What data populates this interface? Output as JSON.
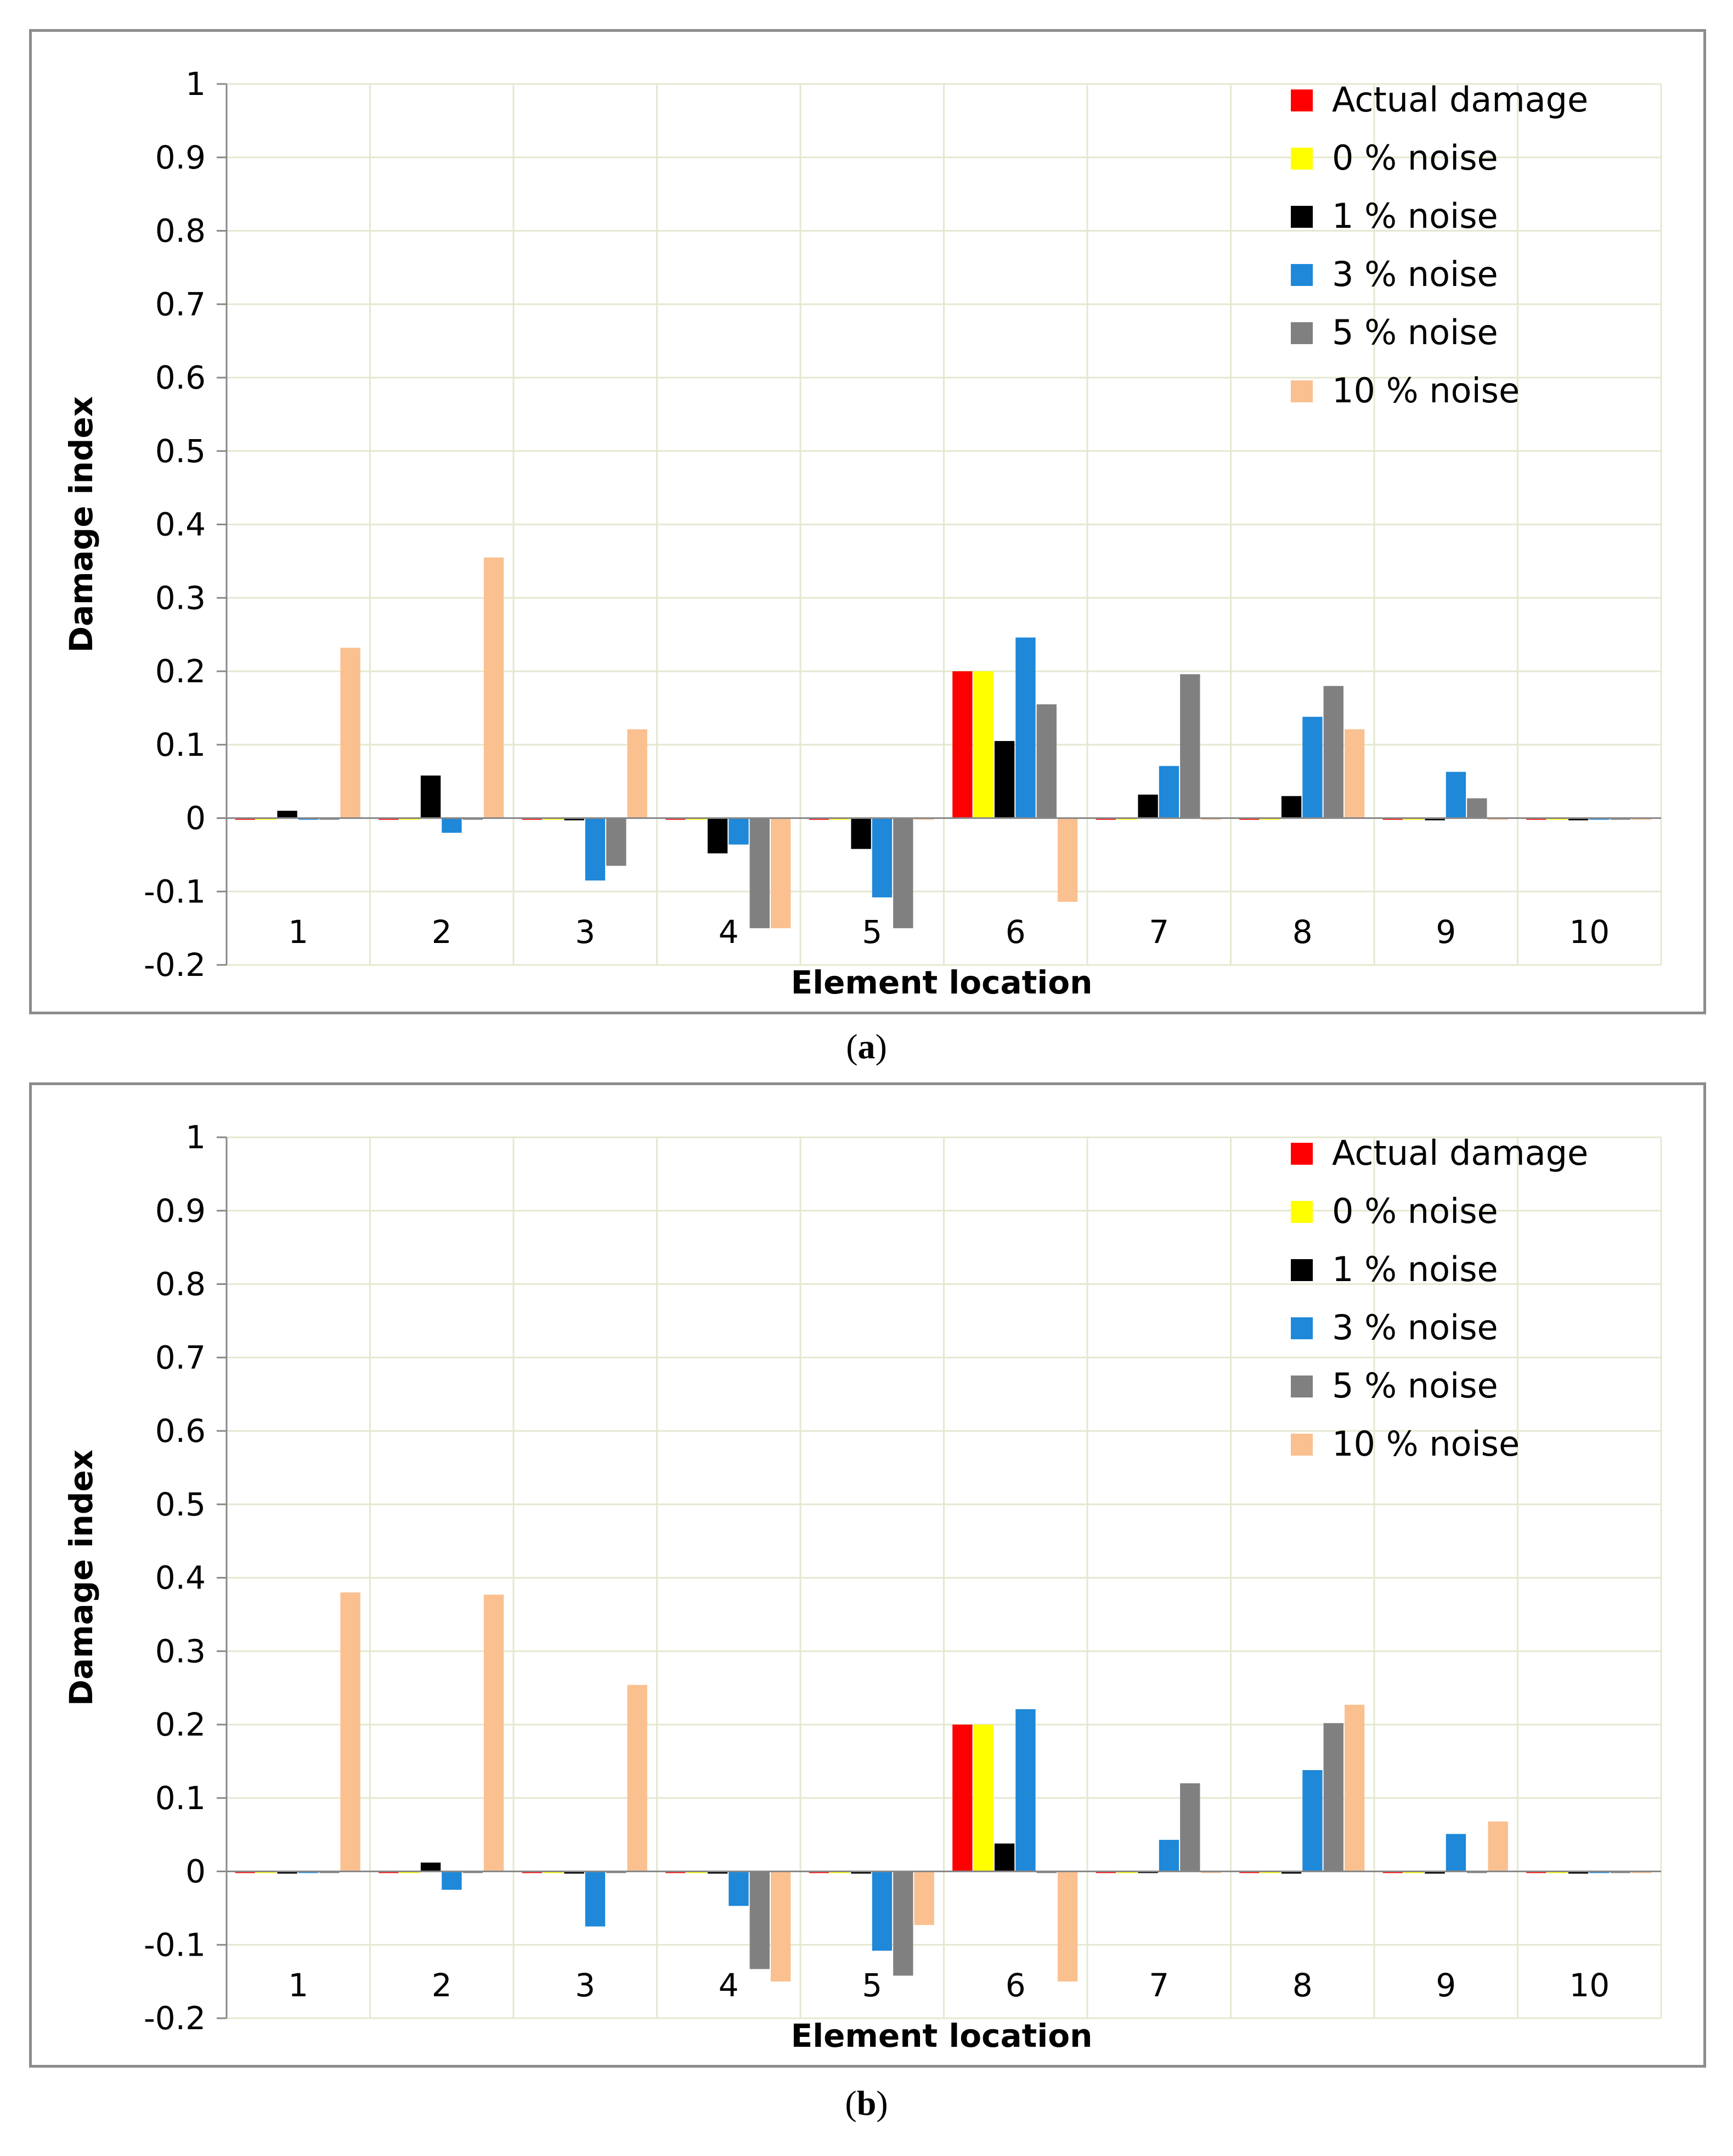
{
  "captions": [
    "a",
    "b"
  ],
  "chart_data": [
    {
      "type": "bar",
      "title": "",
      "panel_label": "a",
      "xlabel": "Element location",
      "ylabel": "Damage index",
      "ylim": [
        -0.2,
        1
      ],
      "yticks": [
        "-0.2",
        "-0.1",
        "0",
        "0.1",
        "0.2",
        "0.3",
        "0.4",
        "0.5",
        "0.6",
        "0.7",
        "0.8",
        "0.9",
        "1"
      ],
      "categories": [
        "1",
        "2",
        "3",
        "4",
        "5",
        "6",
        "7",
        "8",
        "9",
        "10"
      ],
      "legend_position": "top-right",
      "grid": true,
      "series": [
        {
          "name": "Actual damage",
          "color": "#ff0000",
          "values": [
            0,
            0,
            0,
            0,
            0,
            0.2,
            0,
            0,
            0,
            0
          ]
        },
        {
          "name": "0 % noise",
          "color": "#ffff00",
          "values": [
            -0.002,
            -0.002,
            -0.002,
            -0.002,
            -0.002,
            0.2,
            -0.002,
            -0.002,
            -0.002,
            -0.002
          ]
        },
        {
          "name": "1 % noise",
          "color": "#000000",
          "values": [
            0.01,
            0.058,
            -0.003,
            -0.048,
            -0.042,
            0.105,
            0.032,
            0.03,
            -0.003,
            -0.003
          ]
        },
        {
          "name": "3 % noise",
          "color": "#1f88d8",
          "values": [
            -0.002,
            -0.02,
            -0.085,
            -0.036,
            -0.108,
            0.246,
            0.071,
            0.138,
            0.063,
            -0.002
          ]
        },
        {
          "name": "5 % noise",
          "color": "#808080",
          "values": [
            -0.002,
            -0.002,
            -0.065,
            -0.15,
            -0.15,
            0.155,
            0.196,
            0.18,
            0.027,
            -0.002
          ]
        },
        {
          "name": "10 % noise",
          "color": "#fac090",
          "values": [
            0.232,
            0.355,
            0.121,
            -0.15,
            -0.002,
            -0.114,
            -0.002,
            0.121,
            -0.002,
            -0.002
          ]
        }
      ]
    },
    {
      "type": "bar",
      "title": "",
      "panel_label": "b",
      "xlabel": "Element location",
      "ylabel": "Damage index",
      "ylim": [
        -0.2,
        1
      ],
      "yticks": [
        "-0.2",
        "-0.1",
        "0",
        "0.1",
        "0.2",
        "0.3",
        "0.4",
        "0.5",
        "0.6",
        "0.7",
        "0.8",
        "0.9",
        "1"
      ],
      "categories": [
        "1",
        "2",
        "3",
        "4",
        "5",
        "6",
        "7",
        "8",
        "9",
        "10"
      ],
      "legend_position": "top-right",
      "grid": true,
      "series": [
        {
          "name": "Actual damage",
          "color": "#ff0000",
          "values": [
            0,
            0,
            0,
            0,
            0,
            0.2,
            0,
            0,
            0,
            0
          ]
        },
        {
          "name": "0 % noise",
          "color": "#ffff00",
          "values": [
            -0.002,
            -0.002,
            -0.002,
            -0.002,
            -0.002,
            0.2,
            -0.002,
            -0.002,
            -0.002,
            -0.002
          ]
        },
        {
          "name": "1 % noise",
          "color": "#000000",
          "values": [
            -0.003,
            0.012,
            -0.003,
            -0.003,
            -0.003,
            0.038,
            -0.002,
            -0.003,
            -0.003,
            -0.003
          ]
        },
        {
          "name": "3 % noise",
          "color": "#1f88d8",
          "values": [
            -0.002,
            -0.025,
            -0.075,
            -0.047,
            -0.108,
            0.221,
            0.043,
            0.138,
            0.051,
            -0.002
          ]
        },
        {
          "name": "5 % noise",
          "color": "#808080",
          "values": [
            -0.002,
            -0.002,
            -0.002,
            -0.133,
            -0.142,
            -0.002,
            0.12,
            0.202,
            -0.002,
            -0.002
          ]
        },
        {
          "name": "10 % noise",
          "color": "#fac090",
          "values": [
            0.38,
            0.377,
            0.254,
            -0.15,
            -0.073,
            -0.15,
            -0.002,
            0.227,
            0.068,
            -0.002
          ]
        }
      ]
    }
  ]
}
